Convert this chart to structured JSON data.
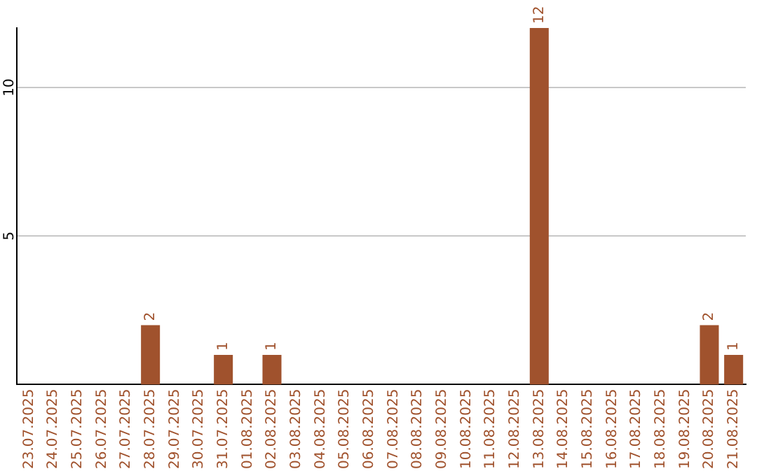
{
  "chart_data": {
    "type": "bar",
    "categories": [
      "23.07.2025",
      "24.07.2025",
      "25.07.2025",
      "26.07.2025",
      "27.07.2025",
      "28.07.2025",
      "29.07.2025",
      "30.07.2025",
      "31.07.2025",
      "01.08.2025",
      "02.08.2025",
      "03.08.2025",
      "04.08.2025",
      "05.08.2025",
      "06.08.2025",
      "07.08.2025",
      "08.08.2025",
      "09.08.2025",
      "10.08.2025",
      "11.08.2025",
      "12.08.2025",
      "13.08.2025",
      "14.08.2025",
      "15.08.2025",
      "16.08.2025",
      "17.08.2025",
      "18.08.2025",
      "19.08.2025",
      "20.08.2025",
      "21.08.2025"
    ],
    "values": [
      0,
      0,
      0,
      0,
      0,
      2,
      0,
      0,
      1,
      0,
      1,
      0,
      0,
      0,
      0,
      0,
      0,
      0,
      0,
      0,
      0,
      12,
      0,
      0,
      0,
      0,
      0,
      0,
      2,
      1
    ],
    "value_labels": [
      null,
      null,
      null,
      null,
      null,
      "2",
      null,
      null,
      "1",
      null,
      "1",
      null,
      null,
      null,
      null,
      null,
      null,
      null,
      null,
      null,
      null,
      "12",
      null,
      null,
      null,
      null,
      null,
      null,
      "2",
      "1"
    ],
    "color": "#a0522d",
    "ylim": [
      0,
      12
    ],
    "yticks": [
      5,
      10
    ],
    "grid": "y",
    "legend": false
  }
}
